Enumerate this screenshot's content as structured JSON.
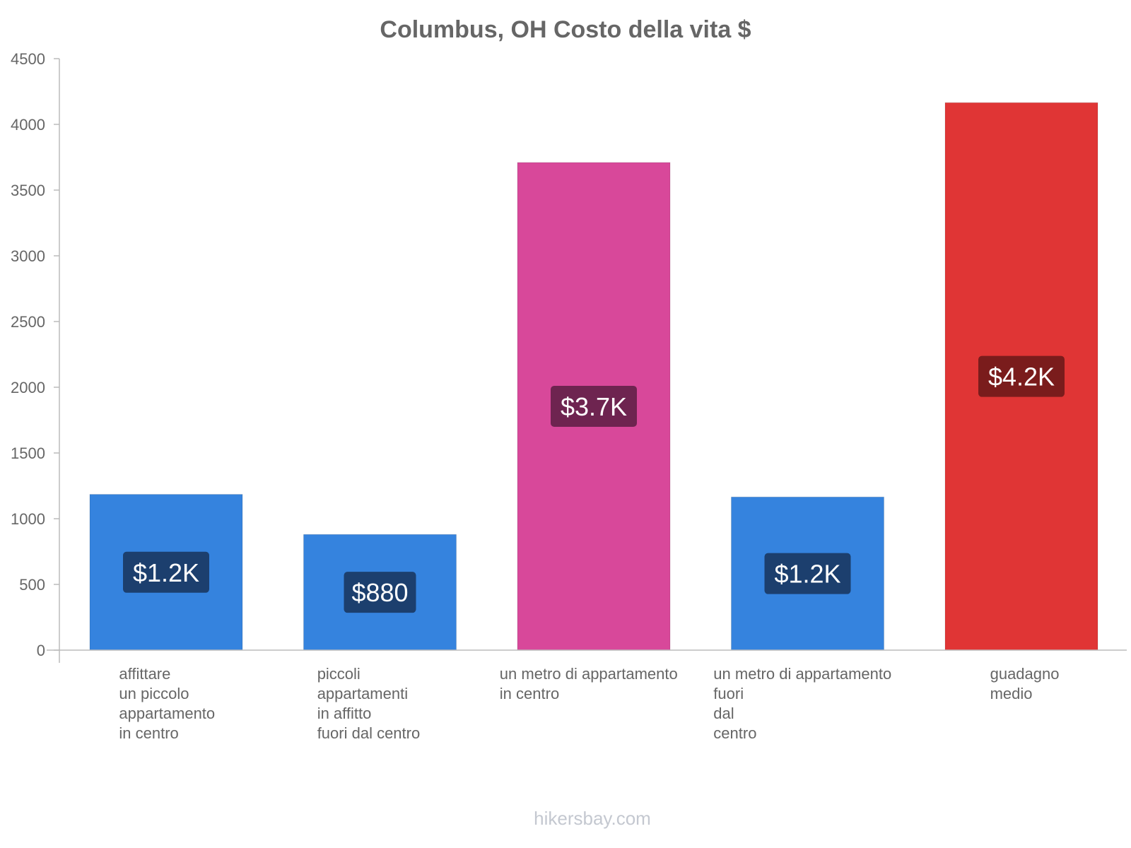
{
  "chart_data": {
    "type": "bar",
    "title": "Columbus, OH Costo della vita $",
    "xlabel": "",
    "ylabel": "",
    "ylim": [
      0,
      4500
    ],
    "yticks": [
      0,
      500,
      1000,
      1500,
      2000,
      2500,
      3000,
      3500,
      4000,
      4500
    ],
    "grid": false,
    "categories": [
      [
        "affittare",
        "un piccolo",
        "appartamento",
        "in centro"
      ],
      [
        "piccoli",
        "appartamenti",
        "in affitto",
        "fuori dal centro"
      ],
      [
        "un metro di appartamento",
        "in centro"
      ],
      [
        "un metro di appartamento",
        "fuori",
        "dal",
        "centro"
      ],
      [
        "guadagno",
        "medio"
      ]
    ],
    "values": [
      1185,
      880,
      3710,
      1165,
      4165
    ],
    "data_labels": [
      "$1.2K",
      "$880",
      "$3.7K",
      "$1.2K",
      "$4.2K"
    ],
    "bar_colors": [
      "#3583de",
      "#3583de",
      "#d8489a",
      "#3583de",
      "#e03535"
    ],
    "label_bg_colors": [
      "#1c3f6e",
      "#1c3f6e",
      "#6e2450",
      "#1c3f6e",
      "#7a1c1c"
    ]
  },
  "source": "hikersbay.com"
}
